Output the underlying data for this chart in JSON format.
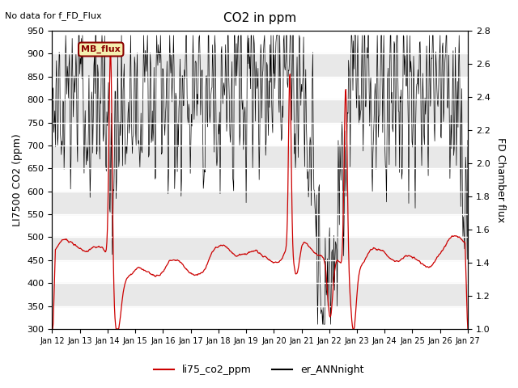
{
  "title": "CO2 in ppm",
  "top_left_text": "No data for f_FD_Flux",
  "ylabel_left": "LI7500 CO2 (ppm)",
  "ylabel_right": "FD Chamber flux",
  "ylim_left": [
    300,
    950
  ],
  "ylim_right": [
    1.0,
    2.8
  ],
  "xtick_labels": [
    "Jan 12",
    "Jan 13",
    "Jan 14",
    "Jan 15",
    "Jan 16",
    "Jan 17",
    "Jan 18",
    "Jan 19",
    "Jan 20",
    "Jan 21",
    "Jan 22",
    "Jan 23",
    "Jan 24",
    "Jan 25",
    "Jan 26",
    "Jan 27"
  ],
  "legend_box_text": "MB_flux",
  "legend_entries": [
    {
      "label": "li75_co2_ppm",
      "color": "#cc0000",
      "linestyle": "-"
    },
    {
      "label": "er_ANNnight",
      "color": "#000000",
      "linestyle": "-"
    }
  ],
  "background_color": "#ffffff",
  "plot_bg_color": "#ffffff",
  "gray_band_color": "#e8e8e8",
  "fig_width": 6.4,
  "fig_height": 4.8,
  "dpi": 100
}
